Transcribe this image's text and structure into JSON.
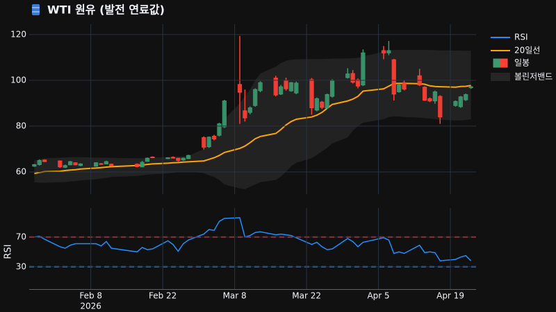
{
  "chart_data": [
    {
      "type": "candlestick",
      "title": "WTI 원유 (발전 연료값)",
      "candle_name": "일봉",
      "increasing_color": "#3D9970",
      "decreasing_color": "#FF4136",
      "x": [
        "2026-01-28",
        "2026-01-29",
        "2026-01-30",
        "2026-02-02",
        "2026-02-03",
        "2026-02-04",
        "2026-02-05",
        "2026-02-06",
        "2026-02-09",
        "2026-02-10",
        "2026-02-11",
        "2026-02-12",
        "2026-02-17",
        "2026-02-18",
        "2026-02-19",
        "2026-02-20",
        "2026-02-23",
        "2026-02-24",
        "2026-02-25",
        "2026-02-26",
        "2026-02-27",
        "2026-03-02",
        "2026-03-03",
        "2026-03-04",
        "2026-03-05",
        "2026-03-06",
        "2026-03-09",
        "2026-03-10",
        "2026-03-11",
        "2026-03-12",
        "2026-03-13",
        "2026-03-16",
        "2026-03-17",
        "2026-03-18",
        "2026-03-19",
        "2026-03-20",
        "2026-03-23",
        "2026-03-24",
        "2026-03-25",
        "2026-03-26",
        "2026-03-27",
        "2026-03-30",
        "2026-03-31",
        "2026-04-01",
        "2026-04-02",
        "2026-04-06",
        "2026-04-07",
        "2026-04-08",
        "2026-04-09",
        "2026-04-10",
        "2026-04-13",
        "2026-04-14",
        "2026-04-15",
        "2026-04-16",
        "2026-04-17",
        "2026-04-20",
        "2026-04-21",
        "2026-04-22",
        "2026-04-23"
      ],
      "open": [
        62.5,
        63.2,
        65.2,
        64.8,
        62.0,
        63.1,
        64.0,
        62.8,
        62.5,
        63.6,
        63.5,
        63.4,
        63.4,
        62.2,
        64.6,
        66.5,
        65.8,
        66.4,
        66.0,
        65.2,
        65.8,
        75.0,
        71.0,
        75.6,
        76.0,
        79.7,
        98.2,
        86.7,
        86.0,
        89.0,
        95.5,
        101.0,
        94.0,
        100.0,
        95.4,
        94.5,
        100.3,
        87.0,
        90.5,
        88.0,
        93.0,
        101.2,
        103.0,
        100.2,
        98.0,
        113.0,
        112.0,
        109.0,
        95.0,
        99.0,
        102.0,
        97.0,
        92.0,
        91.0,
        93.0,
        89.0,
        88.5,
        91.5,
        96.8
      ],
      "high": [
        63.5,
        65.5,
        65.5,
        65.0,
        63.2,
        64.8,
        64.2,
        63.8,
        64.2,
        63.9,
        64.9,
        63.6,
        63.7,
        64.8,
        66.3,
        66.8,
        66.4,
        66.8,
        66.2,
        66.3,
        67.5,
        75.5,
        75.5,
        76.2,
        81.5,
        91.5,
        119.4,
        96.0,
        88.6,
        96.5,
        99.6,
        102.0,
        98.0,
        101.2,
        99.3,
        99.5,
        101.0,
        92.5,
        91.0,
        94.2,
        100.5,
        105.3,
        104.5,
        100.8,
        113.5,
        115.0,
        117.2,
        109.4,
        98.5,
        100.0,
        105.0,
        97.4,
        92.5,
        95.5,
        93.5,
        91.2,
        93.2,
        94.2,
        97.6
      ],
      "low": [
        62.2,
        62.8,
        64.3,
        61.8,
        61.7,
        62.9,
        62.9,
        62.5,
        62.3,
        63.1,
        63.4,
        62.5,
        62.0,
        62.0,
        64.4,
        66.1,
        65.6,
        65.9,
        64.6,
        64.9,
        65.6,
        69.8,
        70.5,
        73.8,
        75.5,
        79.2,
        81.0,
        82.0,
        85.2,
        88.5,
        94.8,
        93.0,
        93.6,
        95.5,
        95.0,
        94.0,
        85.0,
        86.5,
        87.5,
        87.5,
        92.5,
        100.8,
        98.6,
        96.5,
        97.5,
        109.2,
        111.0,
        91.2,
        94.6,
        95.6,
        97.5,
        91.0,
        90.5,
        89.8,
        81.0,
        88.5,
        88.0,
        91.0,
        96.3
      ],
      "close": [
        63.2,
        65.0,
        64.5,
        62.2,
        62.8,
        64.5,
        63.1,
        63.5,
        64.0,
        63.3,
        64.5,
        62.7,
        62.3,
        64.2,
        66.0,
        66.3,
        66.2,
        66.0,
        65.0,
        66.0,
        67.2,
        70.8,
        75.2,
        74.4,
        81.0,
        91.0,
        94.8,
        83.6,
        88.0,
        96.0,
        99.0,
        93.6,
        97.2,
        96.3,
        99.0,
        98.8,
        88.0,
        92.0,
        88.2,
        93.8,
        100.0,
        102.8,
        99.2,
        97.5,
        112.0,
        112.0,
        113.0,
        94.0,
        98.0,
        96.2,
        98.0,
        91.3,
        91.0,
        95.0,
        84.0,
        90.8,
        92.8,
        93.8,
        97.2
      ],
      "series": [
        {
          "name": "20일선",
          "color": "#FFA500",
          "values": [
            59.3,
            59.8,
            60.1,
            60.3,
            60.6,
            60.8,
            61.0,
            61.3,
            61.7,
            61.9,
            62.1,
            62.3,
            62.8,
            63.0,
            63.3,
            63.5,
            63.8,
            64.0,
            64.1,
            64.3,
            64.4,
            64.8,
            65.5,
            66.2,
            67.2,
            68.5,
            70.3,
            71.3,
            72.8,
            74.5,
            75.5,
            76.8,
            78.5,
            80.5,
            82.0,
            83.0,
            84.0,
            84.8,
            86.0,
            87.8,
            89.5,
            91.0,
            91.8,
            93.0,
            95.3,
            96.3,
            97.5,
            98.6,
            98.7,
            98.7,
            98.5,
            98.3,
            97.6,
            97.3,
            97.2,
            97.0,
            97.3,
            97.4,
            97.8
          ]
        }
      ],
      "band": {
        "name": "볼린저밴드",
        "color": "#262626",
        "upper": [
          65.0,
          65.5,
          66.0,
          66.2,
          66.3,
          66.4,
          66.5,
          66.4,
          66.3,
          66.3,
          66.2,
          66.1,
          66.0,
          66.0,
          66.2,
          66.3,
          66.5,
          66.6,
          66.7,
          66.8,
          67.0,
          70.0,
          72.5,
          74.5,
          77.5,
          83.0,
          90.0,
          93.0,
          96.0,
          100.0,
          103.0,
          106.0,
          107.5,
          108.5,
          109.0,
          109.2,
          109.3,
          109.3,
          109.3,
          109.4,
          109.5,
          109.6,
          109.7,
          109.8,
          110.5,
          112.5,
          113.0,
          113.3,
          113.3,
          113.3,
          113.3,
          113.3,
          113.2,
          113.2,
          113.1,
          113.0,
          113.0,
          112.9,
          112.9
        ],
        "lower": [
          55.5,
          55.3,
          55.2,
          55.5,
          55.6,
          55.8,
          56.0,
          56.3,
          56.8,
          57.1,
          57.4,
          57.8,
          58.2,
          58.5,
          58.8,
          59.0,
          59.3,
          59.6,
          59.9,
          60.0,
          60.2,
          59.5,
          58.5,
          57.8,
          56.5,
          54.5,
          52.8,
          52.5,
          53.5,
          54.5,
          55.5,
          56.5,
          58.0,
          60.0,
          62.5,
          64.0,
          66.0,
          67.5,
          69.0,
          70.5,
          72.5,
          75.0,
          78.0,
          80.0,
          81.5,
          83.0,
          84.0,
          84.3,
          84.2,
          84.0,
          83.7,
          83.5,
          83.3,
          83.0,
          82.8,
          82.5,
          82.5,
          82.7,
          83.0
        ]
      },
      "xlim": [
        "2026-01-27",
        "2026-04-24"
      ],
      "ylim": [
        50.3,
        124.5
      ],
      "yticks": [
        60,
        80,
        100,
        120
      ],
      "grid": true
    },
    {
      "type": "line",
      "ylabel": "RSI",
      "series": [
        {
          "name": "RSI",
          "color": "#1F8FFF",
          "values": [
            70,
            71,
            67,
            57,
            55,
            59,
            61,
            61,
            61,
            58,
            64,
            55,
            50,
            56,
            53,
            54,
            65,
            60,
            51,
            61,
            66,
            74,
            80,
            79,
            91,
            95,
            96,
            70,
            72,
            76,
            77,
            73,
            74,
            73,
            72,
            69,
            60,
            63,
            57,
            53,
            54,
            68,
            64,
            57,
            63,
            69,
            66,
            48,
            50,
            48,
            59,
            49,
            50,
            49,
            38,
            40,
            43,
            45,
            38
          ]
        }
      ],
      "hlines": [
        {
          "value": 70,
          "color": "#DC3545"
        },
        {
          "value": 30,
          "color": "#1E90FF"
        }
      ],
      "xlim": [
        "2026-01-27",
        "2026-04-24"
      ],
      "xticks": [
        {
          "value": "2026-02-08",
          "label": "Feb 8"
        },
        {
          "value": "2026-02-22",
          "label": "Feb 22"
        },
        {
          "value": "2026-03-08",
          "label": "Mar 8"
        },
        {
          "value": "2026-03-22",
          "label": "Mar 22"
        },
        {
          "value": "2026-04-05",
          "label": "Apr 5"
        },
        {
          "value": "2026-04-19",
          "label": "Apr 19"
        }
      ],
      "xtick_year": "2026",
      "ylim": [
        0,
        109
      ],
      "yticks": [
        30,
        70
      ],
      "grid": true
    }
  ]
}
